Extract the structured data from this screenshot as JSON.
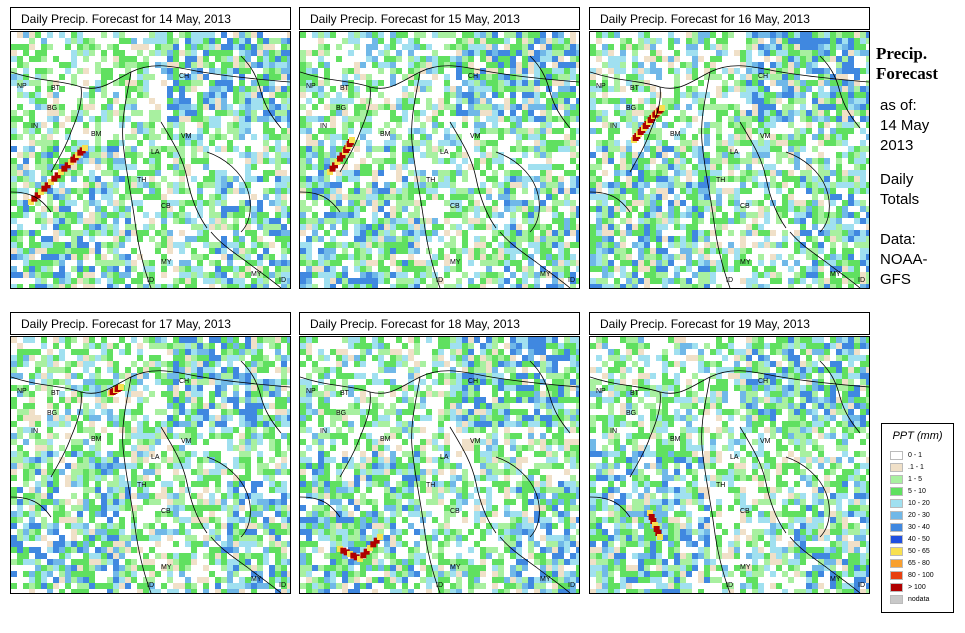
{
  "panels": [
    {
      "title": "Daily Precip. Forecast for  14 May, 2013"
    },
    {
      "title": "Daily Precip. Forecast for  15 May, 2013"
    },
    {
      "title": "Daily Precip. Forecast for  16 May, 2013"
    },
    {
      "title": "Daily Precip. Forecast for  17 May, 2013"
    },
    {
      "title": "Daily Precip. Forecast for  18 May, 2013"
    },
    {
      "title": "Daily Precip. Forecast for  19 May, 2013"
    }
  ],
  "map_labels": [
    "NP",
    "BT",
    "BG",
    "IN",
    "BM",
    "CH",
    "VM",
    "LA",
    "TH",
    "CB",
    "MY",
    "ID",
    "MY",
    "ID"
  ],
  "side": {
    "title_line1": "Precip.",
    "title_line2": "Forecast",
    "asof_label": "as of:",
    "date_line1": "14 May",
    "date_line2": "2013",
    "totals_line1": "Daily",
    "totals_line2": "Totals",
    "data_line1": "Data:",
    "data_line2": "NOAA-",
    "data_line3": "GFS"
  },
  "legend": {
    "title": "PPT (mm)",
    "items": [
      {
        "label": "0 - 1",
        "color": "#ffffff"
      },
      {
        "label": ".1 - 1",
        "color": "#f0e0c8"
      },
      {
        "label": "1 - 5",
        "color": "#a8f0a0"
      },
      {
        "label": "5 - 10",
        "color": "#60e060"
      },
      {
        "label": "10 - 20",
        "color": "#a0e0f0"
      },
      {
        "label": "20 - 30",
        "color": "#70b8e8"
      },
      {
        "label": "30 - 40",
        "color": "#4088e0"
      },
      {
        "label": "40 - 50",
        "color": "#2050e0"
      },
      {
        "label": "50 - 65",
        "color": "#f8e050"
      },
      {
        "label": "65 - 80",
        "color": "#f8a030"
      },
      {
        "label": "80 - 100",
        "color": "#e84010"
      },
      {
        "label": "> 100",
        "color": "#b00000"
      },
      {
        "label": "nodata",
        "color": "#c8c8c8"
      }
    ]
  }
}
